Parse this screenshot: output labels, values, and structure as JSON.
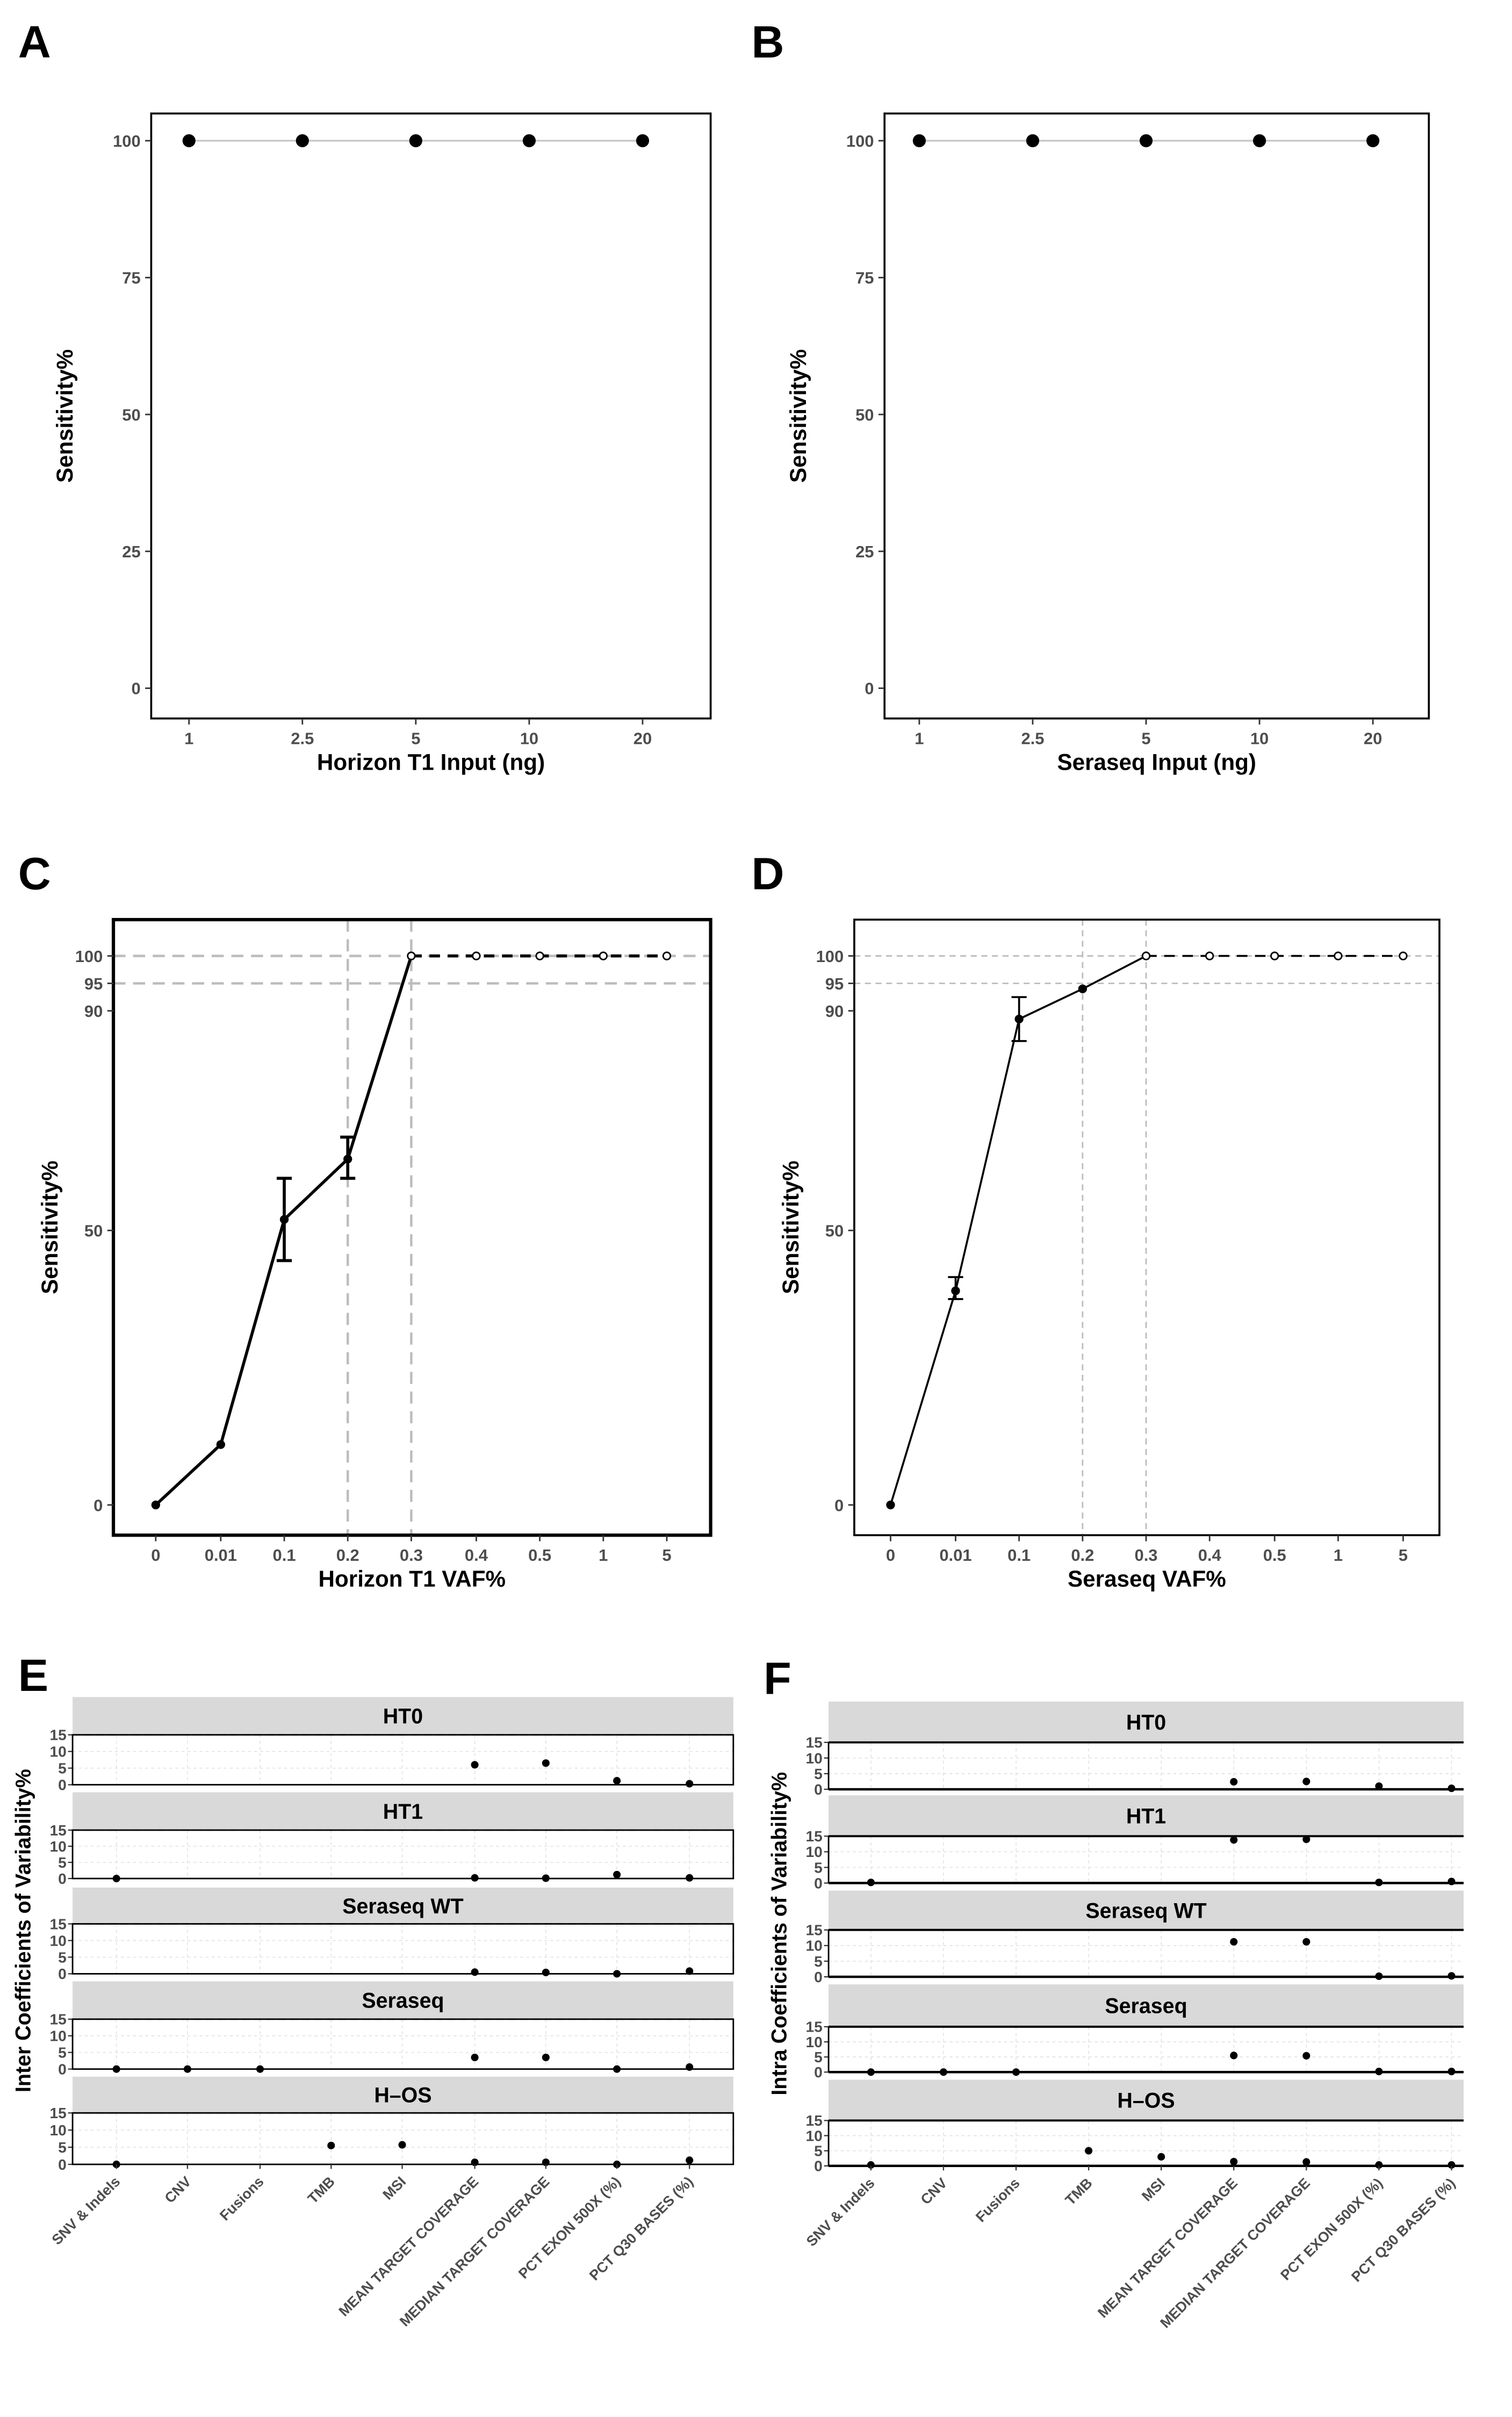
{
  "chart_data": [
    {
      "panel": "A",
      "type": "line",
      "xlabel": "Horizon T1 Input (ng)",
      "ylabel": "Sensitivity%",
      "categories": [
        "1",
        "2.5",
        "5",
        "10",
        "20"
      ],
      "values": [
        100,
        100,
        100,
        100,
        100
      ],
      "yticks": [
        0,
        25,
        50,
        75,
        100
      ],
      "ylim": [
        0,
        100
      ],
      "grid": false
    },
    {
      "panel": "B",
      "type": "line",
      "xlabel": "Seraseq Input (ng)",
      "ylabel": "Sensitivity%",
      "categories": [
        "1",
        "2.5",
        "5",
        "10",
        "20"
      ],
      "values": [
        100,
        100,
        100,
        100,
        100
      ],
      "yticks": [
        0,
        25,
        50,
        75,
        100
      ],
      "ylim": [
        0,
        100
      ],
      "grid": false
    },
    {
      "panel": "C",
      "type": "line",
      "xlabel": "Horizon T1 VAF%",
      "ylabel": "Sensitivity%",
      "categories": [
        "0",
        "0.01",
        "0.1",
        "0.2",
        "0.3",
        "0.4",
        "0.5",
        "1",
        "5"
      ],
      "values": [
        0,
        11,
        52,
        63,
        100,
        100,
        100,
        100,
        100
      ],
      "error_low": [
        0,
        11,
        44.5,
        59.5,
        100,
        100,
        100,
        100,
        100
      ],
      "error_high": [
        0,
        11,
        59.5,
        67,
        100,
        100,
        100,
        100,
        100
      ],
      "yticks": [
        0,
        50,
        90,
        95,
        100
      ],
      "ylim": [
        0,
        100
      ],
      "reference_lines": {
        "y": [
          95,
          100
        ],
        "x": [
          "0.2",
          "0.3"
        ]
      }
    },
    {
      "panel": "D",
      "type": "line",
      "xlabel": "Seraseq VAF%",
      "ylabel": "Sensitivity%",
      "categories": [
        "0",
        "0.01",
        "0.1",
        "0.2",
        "0.3",
        "0.4",
        "0.5",
        "1",
        "5"
      ],
      "values": [
        0,
        39,
        88.5,
        94,
        100,
        100,
        100,
        100,
        100
      ],
      "error_low": [
        0,
        37.5,
        84.5,
        94,
        100,
        100,
        100,
        100,
        100
      ],
      "error_high": [
        0,
        41.5,
        92.5,
        94,
        100,
        100,
        100,
        100,
        100
      ],
      "yticks": [
        0,
        50,
        90,
        95,
        100
      ],
      "ylim": [
        0,
        100
      ],
      "reference_lines": {
        "y": [
          95,
          100
        ],
        "x": [
          "0.2",
          "0.3"
        ]
      }
    },
    {
      "panel": "E",
      "type": "scatter",
      "ylabel": "Inter Coefficients of Variability%",
      "categories": [
        "SNV & Indels",
        "CNV",
        "Fusions",
        "TMB",
        "MSI",
        "MEAN TARGET COVERAGE",
        "MEDIAN TARGET COVERAGE",
        "PCT EXON 500X (%)",
        "PCT Q30 BASES (%)"
      ],
      "yticks": [
        0,
        5,
        10,
        15
      ],
      "ylim": [
        0,
        15
      ],
      "reference_line_y": 15,
      "facets": [
        {
          "name": "HT0",
          "values": [
            null,
            null,
            null,
            null,
            null,
            6,
            6.5,
            1.2,
            0.3
          ]
        },
        {
          "name": "HT1",
          "values": [
            0,
            null,
            null,
            null,
            null,
            0.2,
            0.1,
            1.2,
            0.2
          ]
        },
        {
          "name": "Seraseq WT",
          "values": [
            null,
            null,
            null,
            null,
            null,
            0.5,
            0.4,
            0,
            0.8
          ]
        },
        {
          "name": "Seraseq",
          "values": [
            0,
            0,
            0,
            null,
            null,
            3.5,
            3.5,
            0,
            0.6
          ]
        },
        {
          "name": "H–OS",
          "values": [
            0,
            null,
            null,
            5.5,
            5.7,
            0.6,
            0.6,
            0,
            1.2
          ]
        }
      ]
    },
    {
      "panel": "F",
      "type": "scatter",
      "ylabel": "Intra Coefficients of Variability%",
      "categories": [
        "SNV & Indels",
        "CNV",
        "Fusions",
        "TMB",
        "MSI",
        "MEAN TARGET COVERAGE",
        "MEDIAN TARGET COVERAGE",
        "PCT EXON 500X (%)",
        "PCT Q30 BASES (%)"
      ],
      "yticks": [
        0,
        5,
        10,
        15
      ],
      "ylim": [
        0,
        15
      ],
      "reference_line_y": 15,
      "facets": [
        {
          "name": "HT0",
          "values": [
            null,
            null,
            null,
            null,
            null,
            2.4,
            2.5,
            1,
            0.3
          ]
        },
        {
          "name": "HT1",
          "values": [
            0.2,
            null,
            null,
            null,
            null,
            13.8,
            14,
            0.2,
            0.5
          ]
        },
        {
          "name": "Seraseq WT",
          "values": [
            null,
            null,
            null,
            null,
            null,
            11.2,
            11.2,
            0.2,
            0.3
          ]
        },
        {
          "name": "Seraseq",
          "values": [
            0,
            0,
            0,
            null,
            null,
            5.5,
            5.4,
            0.2,
            0.2
          ]
        },
        {
          "name": "H–OS",
          "values": [
            0.3,
            null,
            null,
            5,
            3,
            1.4,
            1.3,
            0.3,
            0.3
          ]
        }
      ]
    }
  ],
  "colors": {
    "points": "#000000",
    "strip": "#d9d9d9",
    "reference": "#bdbdbd",
    "ticks": "#4d4d4d",
    "line_ab": "#c8c8c8"
  }
}
